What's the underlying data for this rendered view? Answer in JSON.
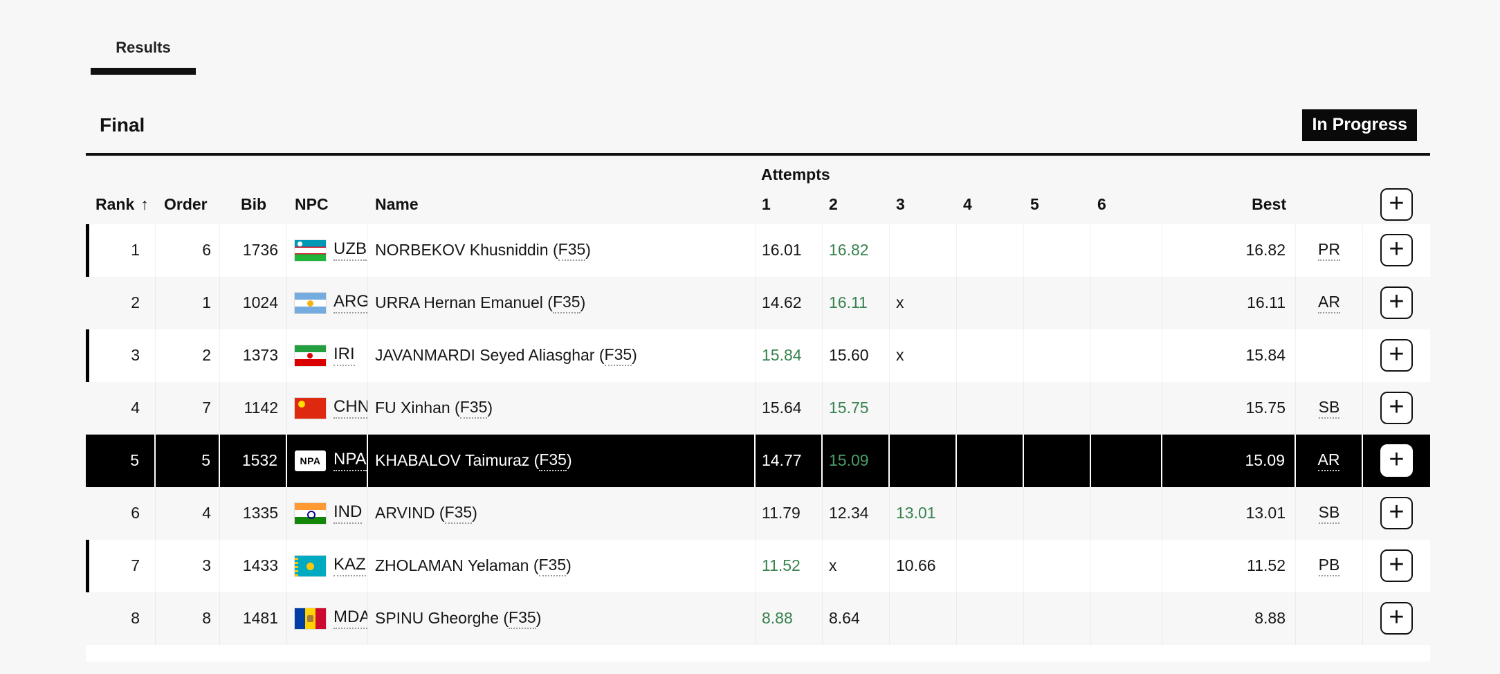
{
  "colors": {
    "page_bg": "#f7f7f7",
    "accent_black": "#0a0a0a",
    "green_valid_mark": "#37824E",
    "highlight_row_bg": "#000000"
  },
  "tabs": {
    "results_label": "Results"
  },
  "heading": {
    "title": "Final",
    "status_badge": "In Progress"
  },
  "table": {
    "attempts_group_label": "Attempts",
    "paren_open": " (",
    "paren_close": ")",
    "plus_label": "+",
    "columns": {
      "rank": "Rank",
      "sort_arrow": "↑",
      "order": "Order",
      "bib": "Bib",
      "npc": "NPC",
      "name": "Name",
      "attempts": [
        "1",
        "2",
        "3",
        "4",
        "5",
        "6"
      ],
      "best": "Best"
    },
    "rows": [
      {
        "rank": "1",
        "order": "6",
        "bib": "1736",
        "npc": "UZB",
        "name": "NORBEKOV Khusniddin",
        "class": "F35",
        "attempts": [
          {
            "v": "16.01"
          },
          {
            "v": "16.82",
            "g": true
          }
        ],
        "best": "16.82",
        "record": "PR",
        "shade": "white",
        "left_bar": true,
        "highlight": false
      },
      {
        "rank": "2",
        "order": "1",
        "bib": "1024",
        "npc": "ARG",
        "name": "URRA Hernan Emanuel",
        "class": "F35",
        "attempts": [
          {
            "v": "14.62"
          },
          {
            "v": "16.11",
            "g": true
          },
          {
            "v": "x"
          }
        ],
        "best": "16.11",
        "record": "AR",
        "shade": "gray",
        "left_bar": false,
        "highlight": false
      },
      {
        "rank": "3",
        "order": "2",
        "bib": "1373",
        "npc": "IRI",
        "name": "JAVANMARDI Seyed Aliasghar",
        "class": "F35",
        "attempts": [
          {
            "v": "15.84",
            "g": true
          },
          {
            "v": "15.60"
          },
          {
            "v": "x"
          }
        ],
        "best": "15.84",
        "record": "",
        "shade": "white",
        "left_bar": true,
        "highlight": false
      },
      {
        "rank": "4",
        "order": "7",
        "bib": "1142",
        "npc": "CHN",
        "name": "FU Xinhan",
        "class": "F35",
        "attempts": [
          {
            "v": "15.64"
          },
          {
            "v": "15.75",
            "g": true
          }
        ],
        "best": "15.75",
        "record": "SB",
        "shade": "gray",
        "left_bar": false,
        "highlight": false
      },
      {
        "rank": "5",
        "order": "5",
        "bib": "1532",
        "npc": "NPA",
        "flag_label": "NPA",
        "name": "KHABALOV Taimuraz",
        "class": "F35",
        "attempts": [
          {
            "v": "14.77"
          },
          {
            "v": "15.09",
            "g": true
          }
        ],
        "best": "15.09",
        "record": "AR",
        "shade": "white",
        "left_bar": false,
        "highlight": true
      },
      {
        "rank": "6",
        "order": "4",
        "bib": "1335",
        "npc": "IND",
        "name": "ARVIND",
        "class": "F35",
        "attempts": [
          {
            "v": "11.79"
          },
          {
            "v": "12.34"
          },
          {
            "v": "13.01",
            "g": true
          }
        ],
        "best": "13.01",
        "record": "SB",
        "shade": "gray",
        "left_bar": false,
        "highlight": false
      },
      {
        "rank": "7",
        "order": "3",
        "bib": "1433",
        "npc": "KAZ",
        "name": "ZHOLAMAN Yelaman",
        "class": "F35",
        "attempts": [
          {
            "v": "11.52",
            "g": true
          },
          {
            "v": "x"
          },
          {
            "v": "10.66"
          }
        ],
        "best": "11.52",
        "record": "PB",
        "shade": "white",
        "left_bar": true,
        "highlight": false
      },
      {
        "rank": "8",
        "order": "8",
        "bib": "1481",
        "npc": "MDA",
        "name": "SPINU Gheorghe",
        "class": "F35",
        "attempts": [
          {
            "v": "8.88",
            "g": true
          },
          {
            "v": "8.64"
          }
        ],
        "best": "8.88",
        "record": "",
        "shade": "gray",
        "left_bar": false,
        "highlight": false
      }
    ]
  }
}
